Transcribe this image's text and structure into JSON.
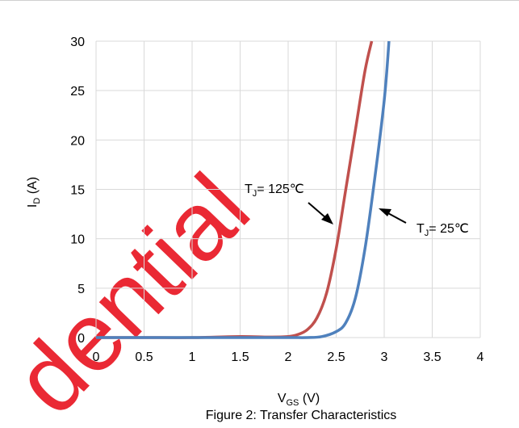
{
  "watermark": "dential",
  "caption": "Figure 2: Transfer Characteristics",
  "chart_data": {
    "type": "line",
    "title": "",
    "xlabel": {
      "main": "V",
      "sub": "GS",
      "unit": " (V)"
    },
    "ylabel": {
      "main": "I",
      "sub": "D",
      "unit": " (A)"
    },
    "xlim": [
      0,
      4
    ],
    "ylim": [
      0,
      30
    ],
    "x_ticks": [
      "0",
      "0.5",
      "1",
      "1.5",
      "2",
      "2.5",
      "3",
      "3.5",
      "4"
    ],
    "y_ticks": [
      "0",
      "5",
      "10",
      "15",
      "20",
      "25",
      "30"
    ],
    "grid": true,
    "colors": {
      "tj125": "#c0504d",
      "tj25": "#4f81bd",
      "grid": "#d9d9d9",
      "watermark": "#e8121f"
    },
    "series": [
      {
        "name": "TJ= 125°C",
        "label": {
          "main": "T",
          "sub": "J",
          "rest": "= 125℃"
        },
        "color": "#c0504d",
        "x": [
          0,
          0.5,
          1.0,
          1.5,
          1.8,
          2.0,
          2.1,
          2.2,
          2.3,
          2.4,
          2.5,
          2.6,
          2.7,
          2.8,
          2.87
        ],
        "y": [
          0,
          0,
          0,
          0.1,
          0.05,
          0.1,
          0.3,
          0.8,
          2.0,
          4.5,
          9.0,
          15.0,
          21.0,
          27.0,
          30.0
        ]
      },
      {
        "name": "TJ= 25°C",
        "label": {
          "main": "T",
          "sub": "J",
          "rest": "= 25℃"
        },
        "color": "#4f81bd",
        "x": [
          0,
          0.5,
          1.0,
          1.5,
          2.0,
          2.2,
          2.35,
          2.5,
          2.6,
          2.7,
          2.8,
          2.9,
          3.0,
          3.05
        ],
        "y": [
          0,
          0,
          0,
          0,
          0,
          0,
          0.1,
          0.6,
          1.5,
          4.0,
          9.0,
          16.0,
          24.0,
          30.0
        ]
      }
    ]
  }
}
